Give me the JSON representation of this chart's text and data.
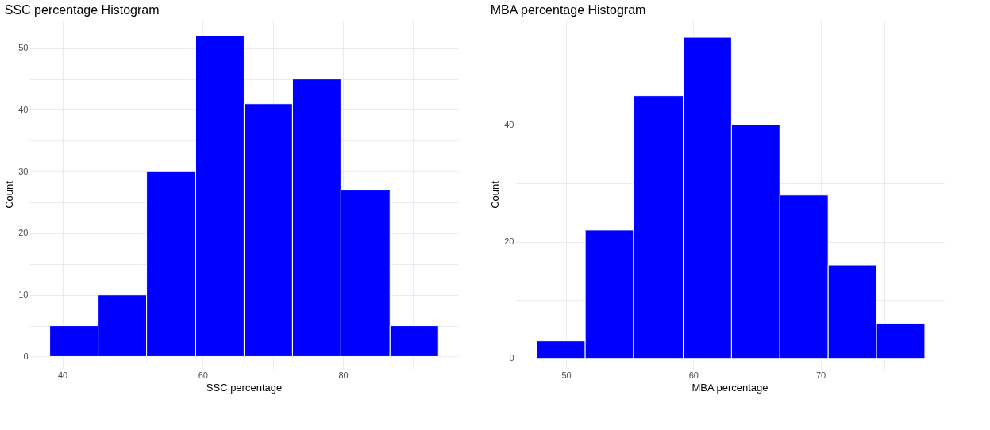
{
  "chart_data": [
    {
      "type": "histogram",
      "title": "SSC percentage Histogram",
      "xlabel": "SSC percentage",
      "ylabel": "Count",
      "color": "#0000ff",
      "bins": [
        38.2,
        45.1,
        52.0,
        59.0,
        65.9,
        72.8,
        79.7,
        86.7,
        93.6
      ],
      "values": [
        5,
        10,
        30,
        52,
        41,
        45,
        27,
        5
      ],
      "xlim": [
        35.3,
        96.4
      ],
      "ylim": [
        -2,
        54.6
      ],
      "xticks": [
        40,
        {
          "value": 50,
          "label": null
        },
        60,
        {
          "value": 70,
          "label": null
        },
        80,
        {
          "value": 90,
          "label": null
        }
      ],
      "yticks": [
        0,
        {
          "value": 5,
          "label": null
        },
        10,
        {
          "value": 15,
          "label": null
        },
        20,
        {
          "value": 25,
          "label": null
        },
        30,
        {
          "value": 35,
          "label": null
        },
        40,
        {
          "value": 45,
          "label": null
        },
        50
      ],
      "grid": true
    },
    {
      "type": "histogram",
      "title": "MBA percentage Histogram",
      "xlabel": "MBA percentage",
      "ylabel": "Count",
      "color": "#0000ff",
      "bins": [
        47.7,
        51.5,
        55.3,
        59.2,
        63.0,
        66.8,
        70.6,
        74.4,
        78.2
      ],
      "values": [
        3,
        22,
        45,
        55,
        40,
        28,
        16,
        6
      ],
      "xlim": [
        46.0,
        79.7
      ],
      "ylim": [
        -1.8,
        58
      ],
      "xticks": [
        50,
        {
          "value": 55,
          "label": null
        },
        60,
        {
          "value": 65,
          "label": null
        },
        70,
        {
          "value": 75,
          "label": null
        }
      ],
      "yticks": [
        0,
        {
          "value": 10,
          "label": null
        },
        20,
        {
          "value": 30,
          "label": null
        },
        40,
        {
          "value": 50,
          "label": null
        }
      ],
      "grid": true
    }
  ]
}
